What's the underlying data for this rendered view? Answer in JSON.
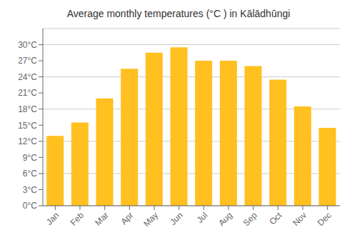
{
  "chart_data": {
    "type": "bar",
    "title": "Average monthly temperatures (°C ) in Kālādhūngi",
    "categories": [
      "Jan",
      "Feb",
      "Mar",
      "Apr",
      "May",
      "Jun",
      "Jul",
      "Aug",
      "Sep",
      "Oct",
      "Nov",
      "Dec"
    ],
    "values": [
      13.0,
      15.5,
      20.0,
      25.5,
      28.5,
      29.5,
      27.0,
      27.0,
      26.0,
      23.5,
      18.5,
      14.5
    ],
    "color": "#FFC020",
    "ylim": [
      0,
      33
    ],
    "yticks": [
      {
        "value": 0,
        "label": "0°C"
      },
      {
        "value": 3,
        "label": "3°C"
      },
      {
        "value": 6,
        "label": "6°C"
      },
      {
        "value": 9,
        "label": "9°C"
      },
      {
        "value": 12,
        "label": "12°C"
      },
      {
        "value": 15,
        "label": "15°C"
      },
      {
        "value": 18,
        "label": "18°C"
      },
      {
        "value": 21,
        "label": "21°C"
      },
      {
        "value": 24,
        "label": "24°C"
      },
      {
        "value": 27,
        "label": "27°C"
      },
      {
        "value": 30,
        "label": "30°C"
      }
    ],
    "grid": true
  }
}
